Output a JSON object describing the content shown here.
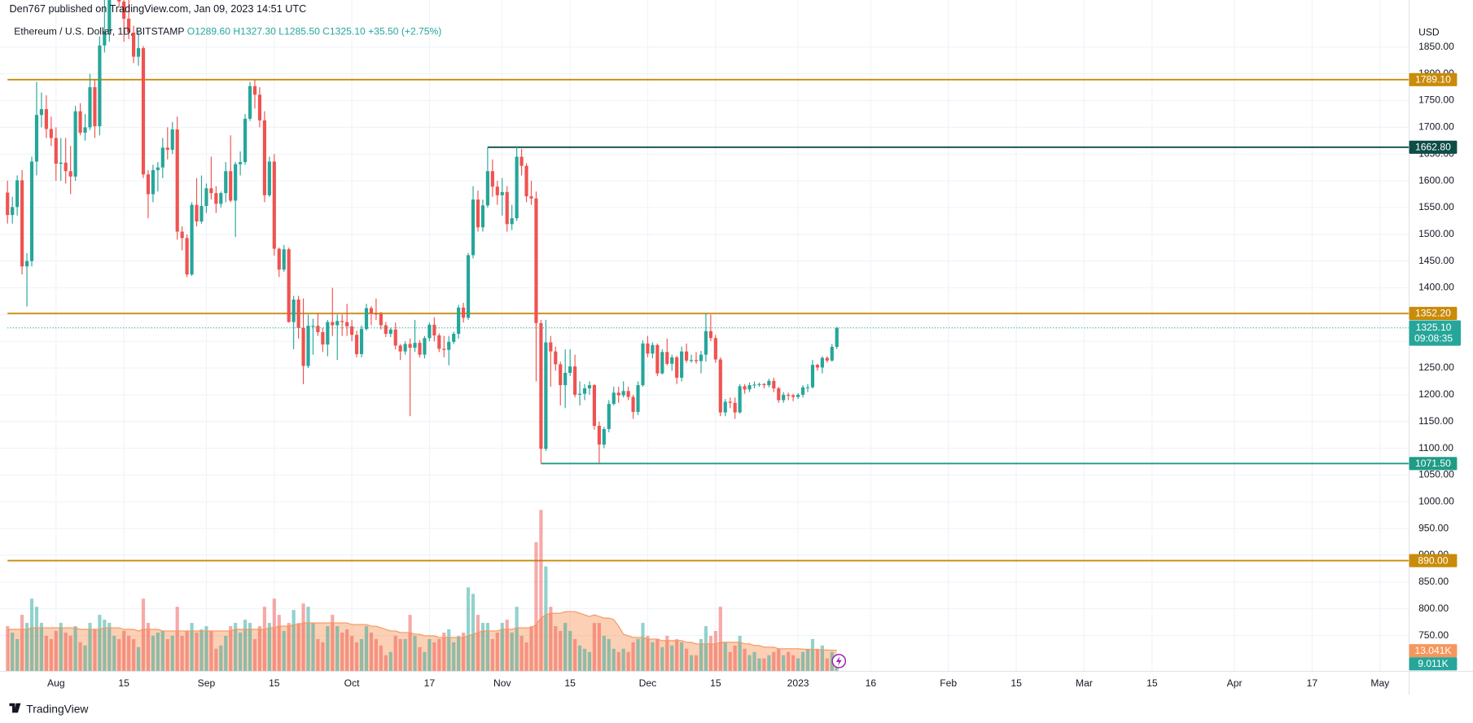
{
  "chart_data": {
    "type": "candlestick",
    "byline": "Den767 published on TradingView.com, Jan 09, 2023 14:51 UTC",
    "symbol": "Ethereum / U.S. Dollar, 1D, BITSTAMP",
    "legend": [
      "O1289.60",
      "H1327.30",
      "L1285.50",
      "C1325.10",
      "+35.50 (+2.75%)"
    ],
    "currency": "USD",
    "brand": "TradingView",
    "up_color": "#26a69a",
    "down_color": "#ef5350",
    "grid": true,
    "xlim": [
      "2022-07-22",
      "2023-05-07"
    ],
    "ylim": [
      683,
      1938
    ],
    "xticks": [
      {
        "value": "2022-08-01",
        "label": "Aug"
      },
      {
        "value": "2022-08-15",
        "label": "15"
      },
      {
        "value": "2022-09-01",
        "label": "Sep"
      },
      {
        "value": "2022-09-15",
        "label": "15"
      },
      {
        "value": "2022-10-01",
        "label": "Oct"
      },
      {
        "value": "2022-10-17",
        "label": "17"
      },
      {
        "value": "2022-11-01",
        "label": "Nov"
      },
      {
        "value": "2022-11-15",
        "label": "15"
      },
      {
        "value": "2022-12-01",
        "label": "Dec"
      },
      {
        "value": "2022-12-15",
        "label": "15"
      },
      {
        "value": "2023-01-01",
        "label": "2023"
      },
      {
        "value": "2023-01-16",
        "label": "16"
      },
      {
        "value": "2023-02-01",
        "label": "Feb"
      },
      {
        "value": "2023-02-15",
        "label": "15"
      },
      {
        "value": "2023-03-01",
        "label": "Mar"
      },
      {
        "value": "2023-03-15",
        "label": "15"
      },
      {
        "value": "2023-04-01",
        "label": "Apr"
      },
      {
        "value": "2023-04-17",
        "label": "17"
      },
      {
        "value": "2023-05-01",
        "label": "May"
      }
    ],
    "yticks": [
      {
        "value": 750,
        "label": "750.00"
      },
      {
        "value": 800,
        "label": "800.00"
      },
      {
        "value": 850,
        "label": "850.00"
      },
      {
        "value": 900,
        "label": "900.00"
      },
      {
        "value": 950,
        "label": "950.00"
      },
      {
        "value": 1000,
        "label": "1000.00"
      },
      {
        "value": 1050,
        "label": "1050.00"
      },
      {
        "value": 1100,
        "label": "1100.00"
      },
      {
        "value": 1150,
        "label": "1150.00"
      },
      {
        "value": 1200,
        "label": "1200.00"
      },
      {
        "value": 1250,
        "label": "1250.00"
      },
      {
        "value": 1300,
        "label": "1300.00"
      },
      {
        "value": 1350,
        "label": "1350.00"
      },
      {
        "value": 1400,
        "label": "1400.00"
      },
      {
        "value": 1450,
        "label": "1450.00"
      },
      {
        "value": 1500,
        "label": "1500.00"
      },
      {
        "value": 1550,
        "label": "1550.00"
      },
      {
        "value": 1600,
        "label": "1600.00"
      },
      {
        "value": 1650,
        "label": "1650.00"
      },
      {
        "value": 1700,
        "label": "1700.00"
      },
      {
        "value": 1750,
        "label": "1750.00"
      },
      {
        "value": 1800,
        "label": "1800.00"
      },
      {
        "value": 1850,
        "label": "1850.00"
      }
    ],
    "levels": [
      {
        "value": 1789.1,
        "label": "1789.10",
        "color": "#c98b09"
      },
      {
        "value": 1662.8,
        "label": "1662.80",
        "color": "#0d4d46",
        "from": "2022-10-29"
      },
      {
        "value": 1352.2,
        "label": "1352.20",
        "color": "#c98b09"
      },
      {
        "value": 1071.5,
        "label": "1071.50",
        "color": "#1f9c86",
        "from": "2022-11-09"
      },
      {
        "value": 890,
        "label": "890.00",
        "color": "#c98b09"
      }
    ],
    "last_price": {
      "value": 1325.1,
      "label": "1325.10"
    },
    "countdown": "09:08:35",
    "volume_label": "9.011K",
    "volume_ma_label": "13.041K",
    "volume_ma_color": "#f7965c",
    "x": [
      "2022-07-22",
      "2022-07-23",
      "2022-07-24",
      "2022-07-25",
      "2022-07-26",
      "2022-07-27",
      "2022-07-28",
      "2022-07-29",
      "2022-07-30",
      "2022-07-31",
      "2022-08-01",
      "2022-08-02",
      "2022-08-03",
      "2022-08-04",
      "2022-08-05",
      "2022-08-06",
      "2022-08-07",
      "2022-08-08",
      "2022-08-09",
      "2022-08-10",
      "2022-08-11",
      "2022-08-12",
      "2022-08-13",
      "2022-08-14",
      "2022-08-15",
      "2022-08-16",
      "2022-08-17",
      "2022-08-18",
      "2022-08-19",
      "2022-08-20",
      "2022-08-21",
      "2022-08-22",
      "2022-08-23",
      "2022-08-24",
      "2022-08-25",
      "2022-08-26",
      "2022-08-27",
      "2022-08-28",
      "2022-08-29",
      "2022-08-30",
      "2022-08-31",
      "2022-09-01",
      "2022-09-02",
      "2022-09-03",
      "2022-09-04",
      "2022-09-05",
      "2022-09-06",
      "2022-09-07",
      "2022-09-08",
      "2022-09-09",
      "2022-09-10",
      "2022-09-11",
      "2022-09-12",
      "2022-09-13",
      "2022-09-14",
      "2022-09-15",
      "2022-09-16",
      "2022-09-17",
      "2022-09-18",
      "2022-09-19",
      "2022-09-20",
      "2022-09-21",
      "2022-09-22",
      "2022-09-23",
      "2022-09-24",
      "2022-09-25",
      "2022-09-26",
      "2022-09-27",
      "2022-09-28",
      "2022-09-29",
      "2022-09-30",
      "2022-10-01",
      "2022-10-02",
      "2022-10-03",
      "2022-10-04",
      "2022-10-05",
      "2022-10-06",
      "2022-10-07",
      "2022-10-08",
      "2022-10-09",
      "2022-10-10",
      "2022-10-11",
      "2022-10-12",
      "2022-10-13",
      "2022-10-14",
      "2022-10-15",
      "2022-10-16",
      "2022-10-17",
      "2022-10-18",
      "2022-10-19",
      "2022-10-20",
      "2022-10-21",
      "2022-10-22",
      "2022-10-23",
      "2022-10-24",
      "2022-10-25",
      "2022-10-26",
      "2022-10-27",
      "2022-10-28",
      "2022-10-29",
      "2022-10-30",
      "2022-10-31",
      "2022-11-01",
      "2022-11-02",
      "2022-11-03",
      "2022-11-04",
      "2022-11-05",
      "2022-11-06",
      "2022-11-07",
      "2022-11-08",
      "2022-11-09",
      "2022-11-10",
      "2022-11-11",
      "2022-11-12",
      "2022-11-13",
      "2022-11-14",
      "2022-11-15",
      "2022-11-16",
      "2022-11-17",
      "2022-11-18",
      "2022-11-19",
      "2022-11-20",
      "2022-11-21",
      "2022-11-22",
      "2022-11-23",
      "2022-11-24",
      "2022-11-25",
      "2022-11-26",
      "2022-11-27",
      "2022-11-28",
      "2022-11-29",
      "2022-11-30",
      "2022-12-01",
      "2022-12-02",
      "2022-12-03",
      "2022-12-04",
      "2022-12-05",
      "2022-12-06",
      "2022-12-07",
      "2022-12-08",
      "2022-12-09",
      "2022-12-10",
      "2022-12-11",
      "2022-12-12",
      "2022-12-13",
      "2022-12-14",
      "2022-12-15",
      "2022-12-16",
      "2022-12-17",
      "2022-12-18",
      "2022-12-19",
      "2022-12-20",
      "2022-12-21",
      "2022-12-22",
      "2022-12-23",
      "2022-12-24",
      "2022-12-25",
      "2022-12-26",
      "2022-12-27",
      "2022-12-28",
      "2022-12-29",
      "2022-12-30",
      "2022-12-31",
      "2023-01-01",
      "2023-01-02",
      "2023-01-03",
      "2023-01-04",
      "2023-01-05",
      "2023-01-06",
      "2023-01-07",
      "2023-01-08",
      "2023-01-09"
    ],
    "open": [
      1578,
      1536,
      1551,
      1601,
      1440,
      1450,
      1636,
      1723,
      1734,
      1697,
      1680,
      1632,
      1634,
      1618,
      1608,
      1730,
      1690,
      1700,
      1775,
      1702,
      1853,
      1880,
      1958,
      1984,
      1935,
      1903,
      1877,
      1832,
      1848,
      1612,
      1575,
      1620,
      1625,
      1662,
      1658,
      1696,
      1505,
      1493,
      1425,
      1555,
      1524,
      1553,
      1586,
      1577,
      1557,
      1577,
      1618,
      1563,
      1631,
      1635,
      1716,
      1777,
      1761,
      1713,
      1573,
      1636,
      1473,
      1434,
      1472,
      1336,
      1378,
      1325,
      1254,
      1329,
      1329,
      1317,
      1294,
      1336,
      1330,
      1338,
      1336,
      1328,
      1312,
      1276,
      1323,
      1362,
      1352,
      1351,
      1330,
      1314,
      1322,
      1292,
      1281,
      1295,
      1288,
      1297,
      1275,
      1306,
      1331,
      1311,
      1286,
      1284,
      1299,
      1314,
      1363,
      1344,
      1461,
      1565,
      1513,
      1554,
      1618,
      1589,
      1573,
      1579,
      1519,
      1530,
      1645,
      1628,
      1571,
      1567,
      1334,
      1099,
      1298,
      1281,
      1257,
      1218,
      1241,
      1253,
      1200,
      1202,
      1212,
      1218,
      1142,
      1107,
      1136,
      1183,
      1204,
      1199,
      1207,
      1196,
      1168,
      1218,
      1296,
      1277,
      1293,
      1240,
      1280,
      1258,
      1270,
      1232,
      1281,
      1264,
      1265,
      1263,
      1275,
      1319,
      1306,
      1266,
      1167,
      1187,
      1185,
      1167,
      1216,
      1210,
      1218,
      1219,
      1220,
      1218,
      1226,
      1212,
      1190,
      1200,
      1199,
      1196,
      1200,
      1214,
      1214,
      1256,
      1251,
      1269,
      1264,
      1289.6
    ],
    "high": [
      1600,
      1570,
      1610,
      1620,
      1465,
      1645,
      1785,
      1765,
      1760,
      1720,
      1700,
      1680,
      1680,
      1665,
      1740,
      1745,
      1725,
      1800,
      1790,
      1870,
      1940,
      1960,
      2020,
      2000,
      1955,
      1940,
      1890,
      1880,
      1852,
      1620,
      1630,
      1635,
      1680,
      1700,
      1710,
      1720,
      1515,
      1500,
      1560,
      1605,
      1610,
      1595,
      1645,
      1590,
      1580,
      1635,
      1685,
      1635,
      1655,
      1725,
      1785,
      1790,
      1775,
      1730,
      1645,
      1650,
      1475,
      1480,
      1475,
      1385,
      1385,
      1380,
      1350,
      1342,
      1352,
      1325,
      1340,
      1400,
      1350,
      1350,
      1370,
      1340,
      1320,
      1330,
      1370,
      1366,
      1380,
      1355,
      1336,
      1325,
      1335,
      1295,
      1300,
      1305,
      1340,
      1302,
      1310,
      1335,
      1345,
      1315,
      1310,
      1310,
      1318,
      1368,
      1372,
      1465,
      1590,
      1582,
      1565,
      1662.8,
      1640,
      1600,
      1605,
      1590,
      1555,
      1665,
      1660,
      1633,
      1600,
      1580,
      1340,
      1340,
      1310,
      1290,
      1262,
      1285,
      1285,
      1275,
      1225,
      1220,
      1225,
      1220,
      1150,
      1140,
      1190,
      1215,
      1215,
      1225,
      1215,
      1200,
      1225,
      1302,
      1310,
      1298,
      1296,
      1285,
      1305,
      1275,
      1273,
      1290,
      1296,
      1275,
      1280,
      1282,
      1352.2,
      1350,
      1312,
      1270,
      1192,
      1195,
      1195,
      1220,
      1220,
      1223,
      1225,
      1223,
      1222,
      1230,
      1232,
      1215,
      1205,
      1204,
      1202,
      1203,
      1218,
      1220,
      1265,
      1258,
      1272,
      1272,
      1295,
      1327.3
    ],
    "low": [
      1520,
      1520,
      1535,
      1425,
      1365,
      1440,
      1610,
      1700,
      1680,
      1665,
      1600,
      1600,
      1595,
      1575,
      1600,
      1685,
      1675,
      1695,
      1680,
      1685,
      1840,
      1860,
      1950,
      1925,
      1860,
      1865,
      1820,
      1815,
      1605,
      1530,
      1560,
      1580,
      1605,
      1640,
      1650,
      1490,
      1470,
      1420,
      1422,
      1515,
      1520,
      1540,
      1565,
      1540,
      1550,
      1560,
      1560,
      1495,
      1610,
      1630,
      1712,
      1735,
      1700,
      1560,
      1570,
      1460,
      1420,
      1430,
      1335,
      1285,
      1305,
      1220,
      1250,
      1275,
      1310,
      1280,
      1272,
      1310,
      1265,
      1310,
      1310,
      1300,
      1270,
      1270,
      1320,
      1330,
      1340,
      1322,
      1308,
      1308,
      1285,
      1265,
      1275,
      1160,
      1280,
      1270,
      1268,
      1300,
      1300,
      1280,
      1270,
      1255,
      1295,
      1305,
      1335,
      1340,
      1455,
      1505,
      1505,
      1550,
      1570,
      1555,
      1535,
      1505,
      1508,
      1525,
      1610,
      1560,
      1555,
      1225,
      1071.5,
      1095,
      1215,
      1245,
      1180,
      1175,
      1235,
      1195,
      1180,
      1190,
      1200,
      1135,
      1073,
      1100,
      1130,
      1180,
      1185,
      1195,
      1190,
      1155,
      1162,
      1215,
      1270,
      1268,
      1235,
      1238,
      1255,
      1245,
      1220,
      1225,
      1260,
      1260,
      1258,
      1240,
      1262,
      1300,
      1260,
      1160,
      1160,
      1175,
      1155,
      1165,
      1202,
      1205,
      1212,
      1215,
      1212,
      1214,
      1205,
      1185,
      1185,
      1190,
      1188,
      1192,
      1195,
      1205,
      1212,
      1245,
      1240,
      1260,
      1262,
      1285.5
    ],
    "close": [
      1536,
      1551,
      1601,
      1440,
      1450,
      1636,
      1723,
      1734,
      1697,
      1680,
      1632,
      1634,
      1618,
      1608,
      1730,
      1690,
      1700,
      1775,
      1702,
      1853,
      1880,
      1958,
      1984,
      1935,
      1903,
      1877,
      1832,
      1848,
      1612,
      1575,
      1620,
      1625,
      1662,
      1658,
      1696,
      1505,
      1493,
      1425,
      1555,
      1524,
      1553,
      1586,
      1577,
      1557,
      1577,
      1618,
      1563,
      1631,
      1635,
      1716,
      1777,
      1761,
      1713,
      1573,
      1636,
      1473,
      1434,
      1472,
      1336,
      1378,
      1325,
      1254,
      1329,
      1329,
      1317,
      1294,
      1336,
      1330,
      1338,
      1336,
      1328,
      1312,
      1276,
      1323,
      1362,
      1352,
      1351,
      1330,
      1314,
      1322,
      1292,
      1281,
      1295,
      1288,
      1297,
      1275,
      1306,
      1331,
      1311,
      1286,
      1284,
      1299,
      1314,
      1363,
      1344,
      1461,
      1565,
      1513,
      1554,
      1618,
      1589,
      1573,
      1579,
      1519,
      1530,
      1645,
      1628,
      1571,
      1567,
      1334,
      1099,
      1298,
      1281,
      1257,
      1218,
      1241,
      1253,
      1200,
      1202,
      1212,
      1218,
      1142,
      1107,
      1136,
      1183,
      1204,
      1199,
      1207,
      1196,
      1168,
      1218,
      1296,
      1277,
      1293,
      1240,
      1280,
      1258,
      1270,
      1232,
      1281,
      1264,
      1265,
      1263,
      1275,
      1319,
      1306,
      1266,
      1167,
      1187,
      1185,
      1167,
      1216,
      1210,
      1218,
      1219,
      1220,
      1218,
      1226,
      1212,
      1190,
      1200,
      1199,
      1196,
      1200,
      1214,
      1214,
      1256,
      1251,
      1269,
      1264,
      1289.6,
      1325.1
    ],
    "volume": [
      28,
      24,
      20,
      35,
      30,
      45,
      40,
      30,
      22,
      20,
      25,
      30,
      24,
      22,
      28,
      18,
      16,
      30,
      26,
      35,
      32,
      30,
      22,
      20,
      25,
      22,
      20,
      15,
      45,
      30,
      22,
      24,
      25,
      20,
      22,
      40,
      22,
      25,
      30,
      24,
      26,
      28,
      25,
      14,
      16,
      22,
      28,
      30,
      24,
      32,
      30,
      20,
      28,
      40,
      30,
      45,
      35,
      25,
      30,
      38,
      30,
      42,
      40,
      30,
      20,
      18,
      28,
      35,
      28,
      24,
      26,
      22,
      18,
      20,
      28,
      24,
      20,
      16,
      10,
      12,
      22,
      20,
      20,
      35,
      22,
      15,
      12,
      20,
      18,
      20,
      24,
      26,
      18,
      22,
      24,
      52,
      48,
      35,
      30,
      30,
      20,
      24,
      30,
      32,
      24,
      40,
      22,
      18,
      28,
      80,
      100,
      65,
      40,
      28,
      25,
      30,
      25,
      20,
      16,
      14,
      12,
      30,
      30,
      22,
      20,
      14,
      12,
      14,
      12,
      18,
      20,
      30,
      22,
      18,
      20,
      15,
      22,
      16,
      20,
      18,
      14,
      10,
      10,
      20,
      28,
      22,
      25,
      40,
      18,
      12,
      16,
      22,
      14,
      10,
      12,
      8,
      8,
      10,
      12,
      14,
      10,
      12,
      10,
      8,
      12,
      14,
      20,
      14,
      16,
      8,
      12,
      9.011
    ],
    "volume_ma": [
      26,
      26,
      26,
      26,
      26,
      27,
      27,
      27,
      27,
      27,
      27,
      27,
      27,
      27,
      27,
      26,
      26,
      26,
      26,
      26,
      27,
      27,
      27,
      27,
      26,
      26,
      26,
      25,
      26,
      26,
      26,
      26,
      25,
      25,
      25,
      25,
      25,
      25,
      25,
      25,
      25,
      25,
      25,
      25,
      25,
      25,
      25,
      26,
      26,
      26,
      26,
      26,
      26,
      26,
      27,
      27,
      28,
      28,
      28,
      29,
      29,
      30,
      30,
      30,
      30,
      30,
      30,
      30,
      30,
      30,
      30,
      29,
      29,
      29,
      29,
      28,
      28,
      27,
      26,
      25,
      25,
      24,
      24,
      24,
      23,
      23,
      22,
      22,
      22,
      21,
      21,
      21,
      21,
      21,
      21,
      22,
      23,
      24,
      25,
      25,
      25,
      25,
      26,
      26,
      26,
      27,
      27,
      27,
      27,
      29,
      33,
      35,
      36,
      36,
      36,
      37,
      37,
      37,
      36,
      35,
      34,
      35,
      34,
      33,
      33,
      32,
      28,
      23,
      22,
      21,
      21,
      21,
      20,
      20,
      20,
      19,
      19,
      19,
      19,
      19,
      18,
      18,
      17,
      17,
      17,
      17,
      17,
      18,
      18,
      18,
      18,
      18,
      17,
      17,
      16,
      16,
      15,
      15,
      15,
      14,
      14,
      14,
      14,
      14,
      13.8,
      13.6,
      13.6,
      13.4,
      13.3,
      13.2,
      13.1,
      13.041
    ]
  }
}
